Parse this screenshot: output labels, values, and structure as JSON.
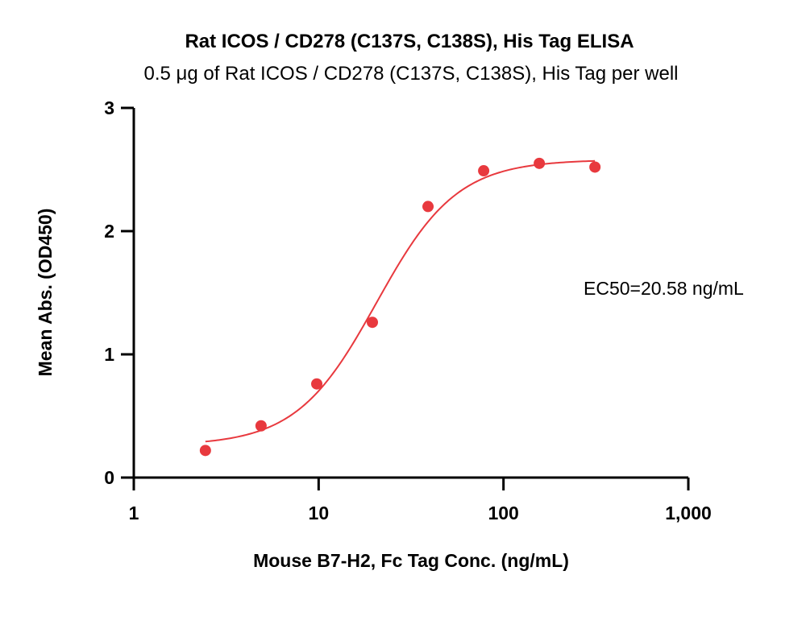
{
  "chart_data": {
    "type": "scatter",
    "title": "Rat ICOS / CD278 (C137S, C138S), His Tag ELISA",
    "subtitle": "0.5 μg of Rat ICOS / CD278 (C137S, C138S), His Tag per well",
    "xlabel": "Mouse B7-H2, Fc Tag Conc. (ng/mL)",
    "ylabel": "Mean Abs. (OD450)",
    "x_scale": "log",
    "xlim": [
      1,
      1000
    ],
    "ylim": [
      0,
      3
    ],
    "x_ticks": [
      {
        "value": 1,
        "label": "1"
      },
      {
        "value": 10,
        "label": "10"
      },
      {
        "value": 100,
        "label": "100"
      },
      {
        "value": 1000,
        "label": "1,000"
      }
    ],
    "y_ticks": [
      {
        "value": 0,
        "label": "0"
      },
      {
        "value": 1,
        "label": "1"
      },
      {
        "value": 2,
        "label": "2"
      },
      {
        "value": 3,
        "label": "3"
      }
    ],
    "series": [
      {
        "color": "#e8393e",
        "x": [
          2.44,
          4.88,
          9.77,
          19.53,
          39.06,
          78.13,
          156.25,
          312.5
        ],
        "y": [
          0.22,
          0.42,
          0.76,
          1.26,
          2.2,
          2.49,
          2.55,
          2.52
        ]
      }
    ],
    "fit_curve": {
      "model": "4PL",
      "bottom": 0.26,
      "top": 2.58,
      "ec50": 20.58,
      "hill": 2.0,
      "x_range": [
        2.44,
        312.5
      ],
      "color": "#e8393e"
    },
    "annotation": "EC50=20.58 ng/mL",
    "grid": false,
    "legend": "none"
  }
}
